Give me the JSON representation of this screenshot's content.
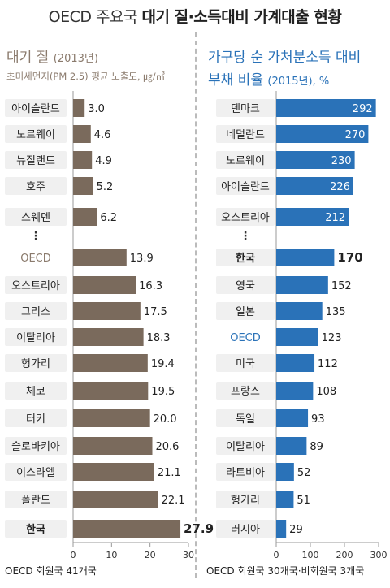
{
  "title": {
    "prefix": "OECD 주요국 ",
    "main": "대기 질·소득대비 가계대출 현황"
  },
  "left": {
    "title": "대기 질",
    "title_year": "(2013년)",
    "subtitle": "초미세먼지(PM 2.5) 평균 노출도, ㎍/㎥",
    "footnote": "OECD 회원국 41개국"
  },
  "right": {
    "title_line1": "가구당 순 가처분소득 대비",
    "title_line2": "부채 비율",
    "title_line2_suffix": "(2015년), %",
    "footnote": "OECD 회원국 30개국·비회원국 3개국"
  },
  "colors": {
    "left_bar": "#7a6a5c",
    "right_bar": "#2a72b8",
    "oecd_label": "#2a72b8",
    "label_box": "#f0f0f0",
    "left_oecd_label": "#8a7a6c"
  },
  "chart_data": [
    {
      "type": "bar",
      "orientation": "horizontal",
      "title": "대기 질 (2013년)",
      "xlabel": "초미세먼지(PM 2.5) 평균 노출도, ㎍/㎥",
      "xlim": [
        0,
        30
      ],
      "xticks": [
        "0",
        "10",
        "20",
        "30"
      ],
      "categories": [
        "아이슬란드",
        "노르웨이",
        "뉴질랜드",
        "호주",
        "스웨덴",
        "OECD",
        "오스트리아",
        "그리스",
        "이탈리아",
        "헝가리",
        "체코",
        "터키",
        "슬로바키아",
        "이스라엘",
        "폴란드",
        "한국"
      ],
      "values": [
        3.0,
        4.6,
        4.9,
        5.2,
        6.2,
        13.9,
        16.3,
        17.5,
        18.3,
        19.4,
        19.5,
        20.0,
        20.6,
        21.1,
        22.1,
        27.9
      ],
      "value_labels": [
        "3.0",
        "4.6",
        "4.9",
        "5.2",
        "6.2",
        "13.9",
        "16.3",
        "17.5",
        "18.3",
        "19.4",
        "19.5",
        "20.0",
        "20.6",
        "21.1",
        "22.1",
        "27.9"
      ],
      "ellipsis_after_index": 4,
      "highlight": "한국"
    },
    {
      "type": "bar",
      "orientation": "horizontal",
      "title": "가구당 순 가처분소득 대비 부채 비율 (2015년), %",
      "xlim": [
        0,
        300
      ],
      "xticks": [
        "0",
        "100",
        "200",
        "300"
      ],
      "categories": [
        "덴마크",
        "네덜란드",
        "노르웨이",
        "아이슬란드",
        "오스트리아",
        "한국",
        "영국",
        "일본",
        "OECD",
        "미국",
        "프랑스",
        "독일",
        "이탈리아",
        "라트비아",
        "헝가리",
        "러시아"
      ],
      "values": [
        292,
        270,
        230,
        226,
        212,
        170,
        152,
        135,
        123,
        112,
        108,
        93,
        89,
        52,
        51,
        29
      ],
      "value_labels": [
        "292",
        "270",
        "230",
        "226",
        "212",
        "170",
        "152",
        "135",
        "123",
        "112",
        "108",
        "93",
        "89",
        "52",
        "51",
        "29"
      ],
      "ellipsis_after_index": 4,
      "highlight": "한국"
    }
  ]
}
